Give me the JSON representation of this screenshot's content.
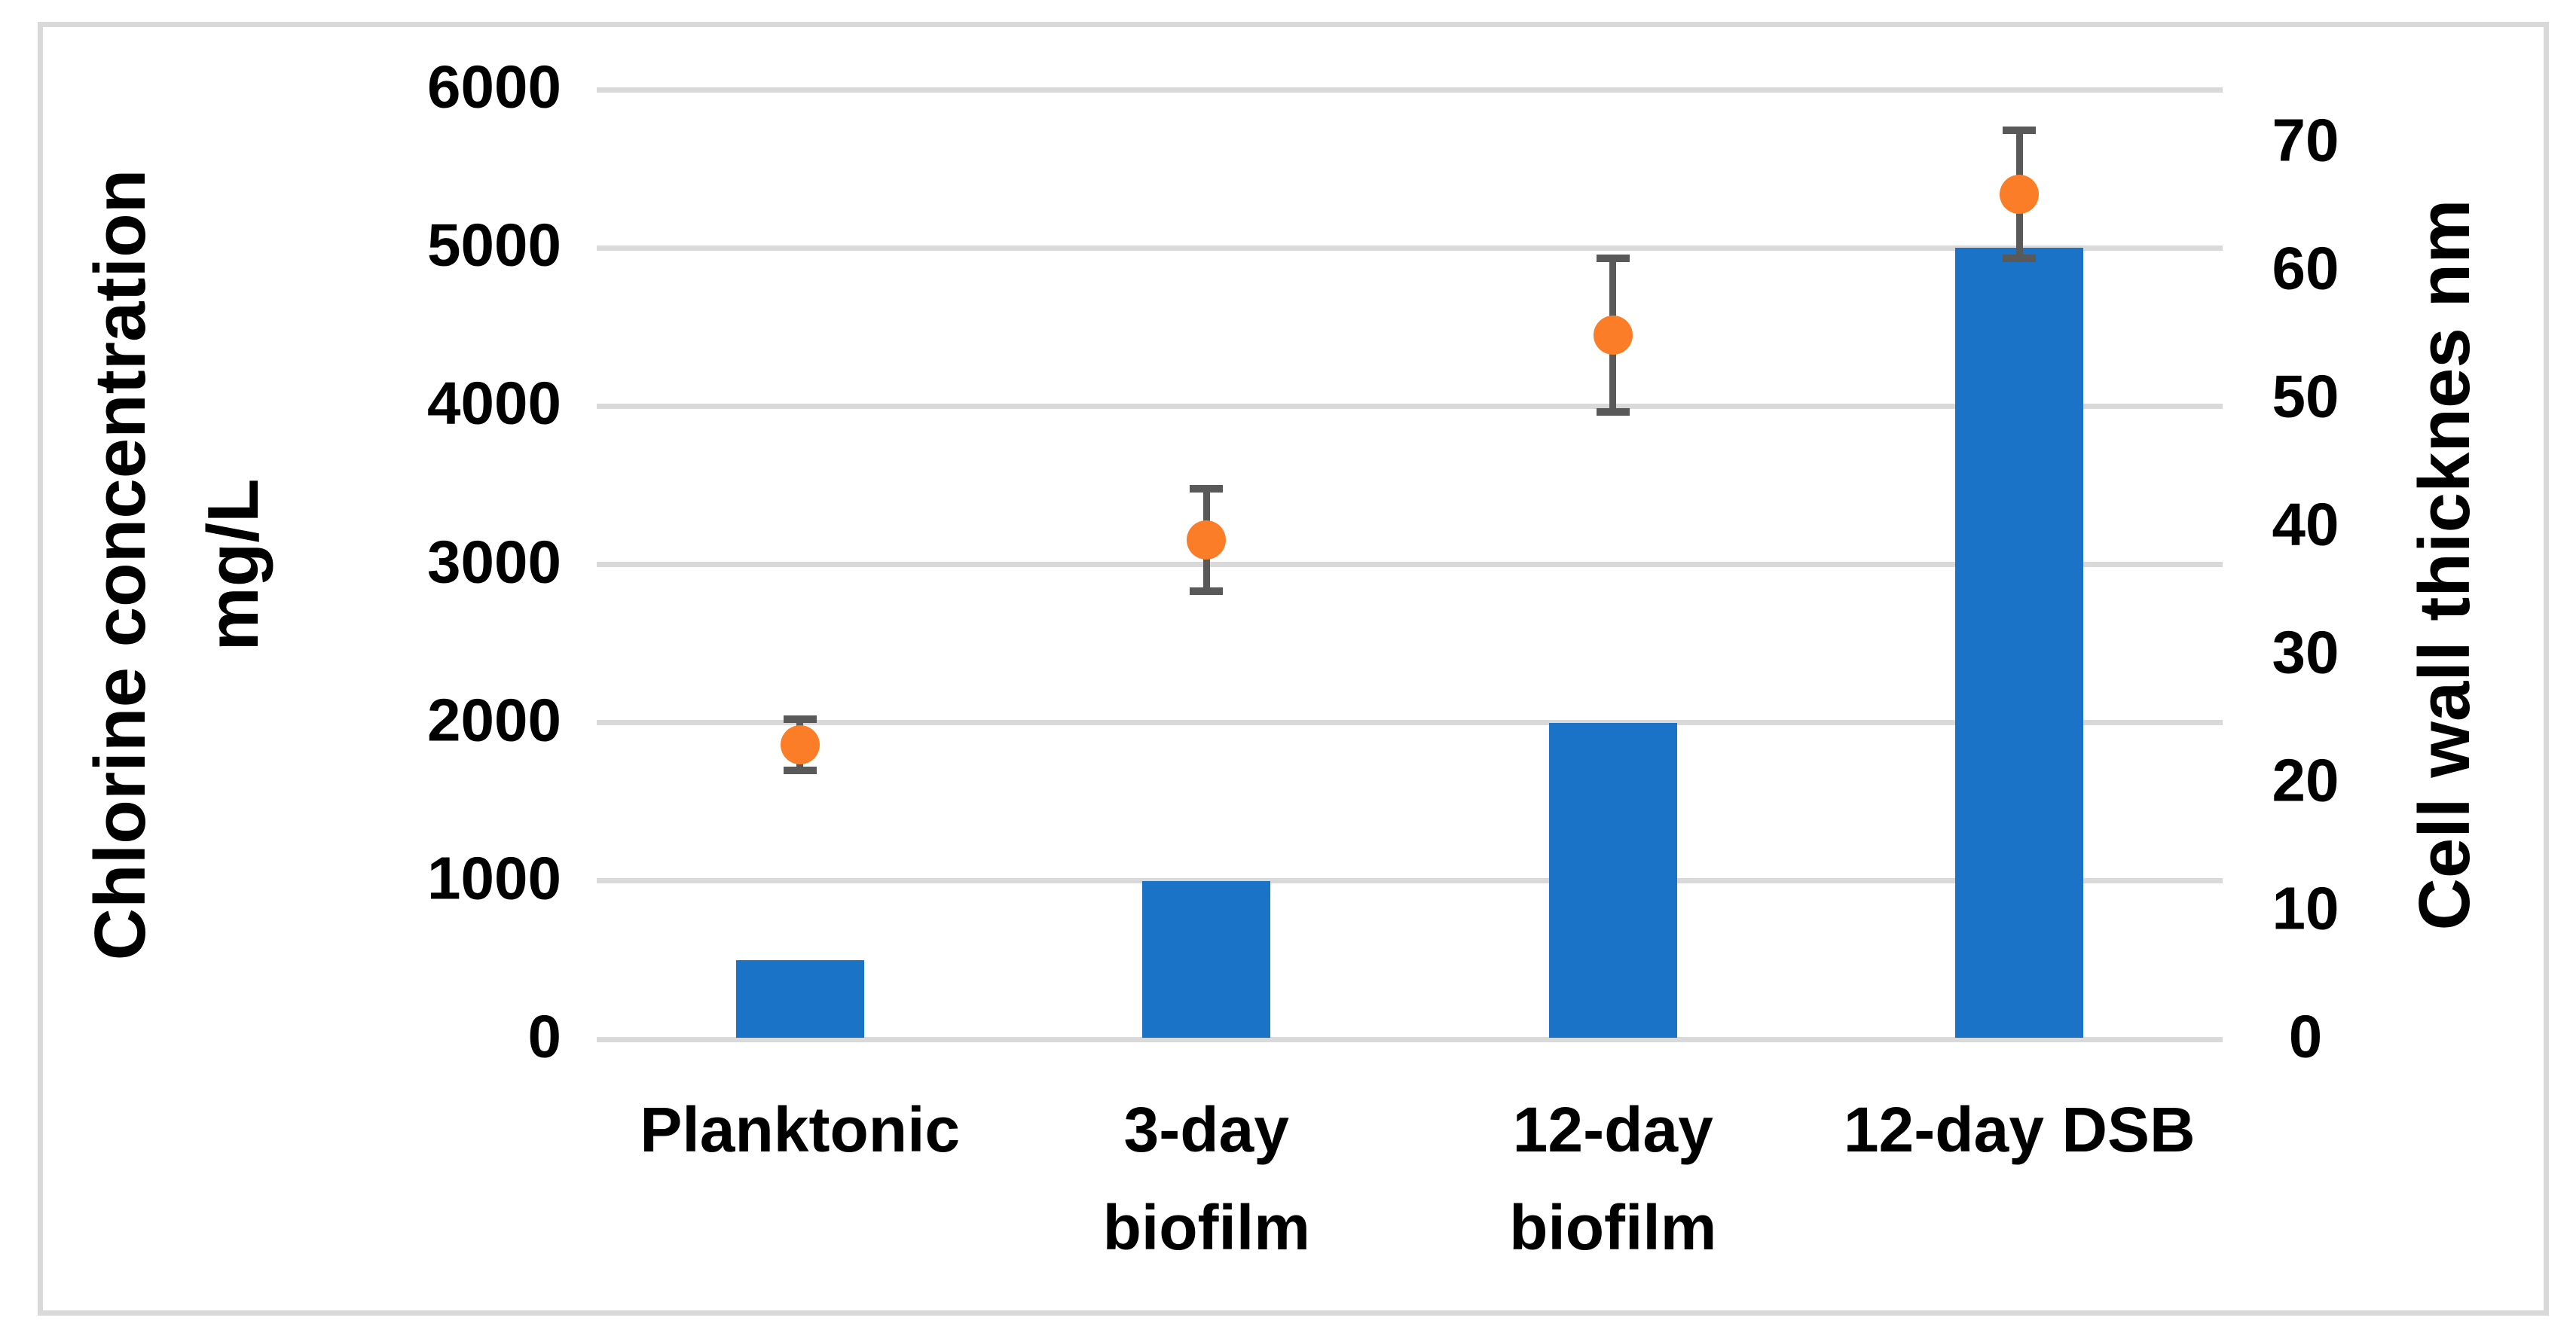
{
  "chart_data": {
    "type": "combo-bar-scatter",
    "title": "",
    "categories": [
      "Planktonic",
      "3-day biofilm",
      "12-day biofilm",
      "12-day DSB"
    ],
    "category_label_lines": [
      [
        "Planktonic"
      ],
      [
        "3-day",
        "biofilm"
      ],
      [
        "12-day",
        "biofilm"
      ],
      [
        "12-day DSB"
      ]
    ],
    "series": [
      {
        "name": "Chlorine concentration mg/L",
        "type": "bar",
        "axis": "left",
        "color": "#1B73C8",
        "values": [
          500,
          1000,
          2000,
          5000
        ]
      },
      {
        "name": "Cell wall thickness nm",
        "type": "scatter",
        "axis": "right",
        "marker": "circle",
        "color": "#FB7D28",
        "values": [
          23,
          39,
          55,
          66
        ],
        "error_bars": [
          2,
          4,
          6,
          5
        ],
        "error_color": "#595959"
      }
    ],
    "left_axis": {
      "title_line1": "Chlorine concentration",
      "title_line2": "mg/L",
      "min": 0,
      "max": 6000,
      "step": 1000,
      "ticks": [
        0,
        1000,
        2000,
        3000,
        4000,
        5000,
        6000
      ]
    },
    "right_axis": {
      "title": "Cell wall thicknes nm",
      "min": 0,
      "max": 70,
      "step": 10,
      "ticks": [
        0,
        10,
        20,
        30,
        40,
        50,
        60,
        70
      ]
    },
    "gridlines": {
      "show": true,
      "color": "#D9D9D9"
    },
    "legend": {
      "show": false
    },
    "colors": {
      "background": "#FFFFFF",
      "frame_border": "#D9D9D9",
      "text": "#000000"
    }
  }
}
